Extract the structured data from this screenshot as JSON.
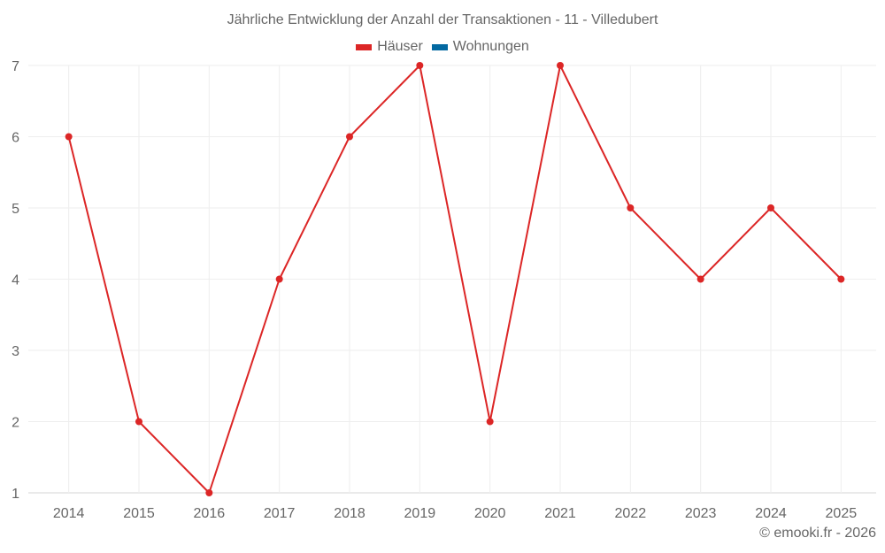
{
  "title": "Jährliche Entwicklung der Anzahl der Transaktionen - 11 - Villedubert",
  "legend": [
    {
      "label": "Häuser",
      "color": "#dc2626"
    },
    {
      "label": "Wohnungen",
      "color": "#0369a1"
    }
  ],
  "credit": "© emooki.fr - 2026",
  "chart_data": {
    "type": "line",
    "title": "Jährliche Entwicklung der Anzahl der Transaktionen - 11 - Villedubert",
    "xlabel": "",
    "ylabel": "",
    "categories": [
      "2014",
      "2015",
      "2016",
      "2017",
      "2018",
      "2019",
      "2020",
      "2021",
      "2022",
      "2023",
      "2024",
      "2025"
    ],
    "series": [
      {
        "name": "Häuser",
        "color": "#dc2626",
        "values": [
          6,
          2,
          1,
          4,
          6,
          7,
          2,
          7,
          5,
          4,
          5,
          4
        ]
      },
      {
        "name": "Wohnungen",
        "color": "#0369a1",
        "values": []
      }
    ],
    "ylim": [
      1,
      7
    ],
    "yticks": [
      1,
      2,
      3,
      4,
      5,
      6,
      7
    ],
    "grid": true,
    "legend_position": "top"
  }
}
